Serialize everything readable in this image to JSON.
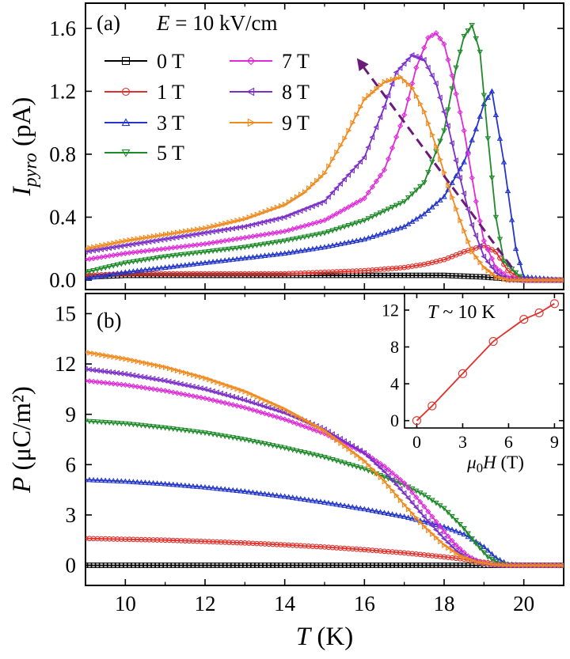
{
  "chart_data": [
    {
      "panel_label": "(a)",
      "type": "line",
      "annotation": "E = 10 kV/cm",
      "annotation_parts": {
        "symbol": "E",
        "rest": " = 10 kV/cm"
      },
      "xlim": [
        9,
        21
      ],
      "ylim": [
        -0.06,
        1.76
      ],
      "x_ticks": [
        10,
        12,
        14,
        16,
        18,
        20
      ],
      "y_ticks": [
        0.0,
        0.4,
        0.8,
        1.2,
        1.6
      ],
      "y_tick_labels": [
        "0.0",
        "0.4",
        "0.8",
        "1.2",
        "1.6"
      ],
      "ylabel": {
        "symbol": "I",
        "subscript": "pyro",
        "unit": " (pA)"
      },
      "arrow": {
        "from": [
          19.7,
          0.08
        ],
        "to": [
          15.9,
          1.38
        ],
        "color": "#6a1b7a"
      },
      "series": [
        {
          "name": "0 T",
          "color": "#000000",
          "marker": "square",
          "x": [
            9,
            10,
            11,
            12,
            13,
            14,
            15,
            16,
            17,
            18,
            19,
            20,
            21
          ],
          "y": [
            0.02,
            0.03,
            0.03,
            0.03,
            0.03,
            0.03,
            0.03,
            0.03,
            0.03,
            0.03,
            0.02,
            0.0,
            0.0
          ]
        },
        {
          "name": "1 T",
          "color": "#e0302a",
          "marker": "circle",
          "x": [
            9,
            10,
            11,
            12,
            13,
            14,
            15,
            16,
            17,
            17.5,
            18,
            18.5,
            19,
            19.3,
            19.6,
            20,
            21
          ],
          "y": [
            0.03,
            0.04,
            0.04,
            0.04,
            0.04,
            0.04,
            0.05,
            0.06,
            0.08,
            0.1,
            0.13,
            0.18,
            0.22,
            0.18,
            0.06,
            0.0,
            0.0
          ]
        },
        {
          "name": "3 T",
          "color": "#2336c9",
          "marker": "triangle-up",
          "x": [
            9,
            10,
            11,
            12,
            13,
            14,
            15,
            16,
            17,
            17.5,
            18,
            18.5,
            18.8,
            19,
            19.2,
            19.5,
            19.8,
            20,
            21
          ],
          "y": [
            0.01,
            0.05,
            0.08,
            0.11,
            0.14,
            0.17,
            0.21,
            0.26,
            0.34,
            0.42,
            0.53,
            0.75,
            0.96,
            1.12,
            1.2,
            0.75,
            0.2,
            0.02,
            0.0
          ]
        },
        {
          "name": "5 T",
          "color": "#1f8a2a",
          "marker": "triangle-down",
          "x": [
            9,
            10,
            11,
            12,
            13,
            14,
            15,
            16,
            17,
            17.5,
            18,
            18.3,
            18.5,
            18.7,
            18.9,
            19.1,
            19.3,
            19.5,
            20,
            21
          ],
          "y": [
            0.05,
            0.11,
            0.15,
            0.18,
            0.21,
            0.25,
            0.3,
            0.38,
            0.5,
            0.62,
            0.95,
            1.35,
            1.55,
            1.62,
            1.45,
            0.9,
            0.4,
            0.12,
            0.0,
            0.0
          ]
        },
        {
          "name": "7 T",
          "color": "#e02ad9",
          "marker": "diamond",
          "x": [
            9,
            10,
            11,
            12,
            13,
            14,
            15,
            16,
            16.5,
            17,
            17.3,
            17.6,
            17.8,
            18,
            18.2,
            18.5,
            18.8,
            19,
            19.3,
            19.6,
            20,
            21
          ],
          "y": [
            0.13,
            0.17,
            0.2,
            0.23,
            0.27,
            0.31,
            0.38,
            0.52,
            0.7,
            1.05,
            1.35,
            1.54,
            1.57,
            1.5,
            1.3,
            0.95,
            0.5,
            0.25,
            0.08,
            0.02,
            0.0,
            0.0
          ]
        },
        {
          "name": "8 T",
          "color": "#7a2fc9",
          "marker": "triangle-left",
          "x": [
            9,
            10,
            11,
            12,
            13,
            14,
            15,
            16,
            16.5,
            16.8,
            17.2,
            17.5,
            17.8,
            18.1,
            18.4,
            18.7,
            19,
            19.3,
            19.6,
            20,
            21
          ],
          "y": [
            0.18,
            0.22,
            0.26,
            0.3,
            0.34,
            0.4,
            0.5,
            0.78,
            1.1,
            1.32,
            1.43,
            1.4,
            1.25,
            0.98,
            0.65,
            0.35,
            0.15,
            0.05,
            0.0,
            0.0,
            0.0
          ]
        },
        {
          "name": "9 T",
          "color": "#f08a1e",
          "marker": "triangle-right",
          "x": [
            9,
            10,
            11,
            12,
            13,
            14,
            14.5,
            15,
            15.5,
            16,
            16.5,
            16.9,
            17.2,
            17.5,
            17.8,
            18.1,
            18.4,
            18.7,
            19,
            19.3,
            19.6,
            20,
            21
          ],
          "y": [
            0.2,
            0.25,
            0.29,
            0.33,
            0.39,
            0.48,
            0.56,
            0.68,
            0.9,
            1.15,
            1.26,
            1.29,
            1.22,
            1.07,
            0.85,
            0.6,
            0.38,
            0.18,
            0.08,
            0.02,
            0.0,
            0.0,
            0.0
          ]
        }
      ]
    },
    {
      "panel_label": "(b)",
      "type": "line",
      "xlim": [
        9,
        21
      ],
      "ylim": [
        -1.2,
        16.2
      ],
      "x_ticks": [
        10,
        12,
        14,
        16,
        18,
        20
      ],
      "y_ticks": [
        0,
        3,
        6,
        9,
        12,
        15
      ],
      "xlabel": {
        "symbol": "T",
        "unit": " (K)"
      },
      "ylabel": {
        "symbol": "P",
        "unit": " (μC/m²)"
      },
      "series": [
        {
          "name": "0 T",
          "color": "#000000",
          "marker": "square",
          "x": [
            9,
            10,
            11,
            12,
            13,
            14,
            15,
            16,
            17,
            18,
            19,
            20,
            21
          ],
          "y": [
            0,
            0,
            0,
            0,
            0,
            0,
            0,
            0,
            0,
            0,
            0,
            0,
            0
          ]
        },
        {
          "name": "1 T",
          "color": "#e0302a",
          "marker": "circle",
          "x": [
            9,
            10,
            11,
            12,
            13,
            14,
            15,
            16,
            17,
            18,
            18.5,
            19,
            19.5,
            20,
            21
          ],
          "y": [
            1.6,
            1.55,
            1.5,
            1.42,
            1.33,
            1.22,
            1.09,
            0.93,
            0.74,
            0.5,
            0.36,
            0.18,
            0.04,
            0.0,
            0.0
          ]
        },
        {
          "name": "3 T",
          "color": "#2336c9",
          "marker": "triangle-up",
          "x": [
            9,
            10,
            11,
            12,
            13,
            14,
            15,
            16,
            17,
            18,
            18.5,
            19,
            19.3,
            19.6,
            20,
            21
          ],
          "y": [
            5.1,
            5.0,
            4.85,
            4.65,
            4.4,
            4.1,
            3.75,
            3.35,
            2.9,
            2.3,
            1.85,
            1.1,
            0.45,
            0.06,
            0.0,
            0.0
          ]
        },
        {
          "name": "5 T",
          "color": "#1f8a2a",
          "marker": "triangle-down",
          "x": [
            9,
            10,
            11,
            12,
            13,
            14,
            15,
            16,
            17,
            17.5,
            18,
            18.5,
            18.8,
            19.1,
            19.4,
            19.7,
            20,
            21
          ],
          "y": [
            8.6,
            8.45,
            8.2,
            7.9,
            7.5,
            7.0,
            6.45,
            5.75,
            4.8,
            4.2,
            3.4,
            2.2,
            1.3,
            0.5,
            0.1,
            0.0,
            0.0,
            0.0
          ]
        },
        {
          "name": "7 T",
          "color": "#e02ad9",
          "marker": "diamond",
          "x": [
            9,
            10,
            11,
            12,
            13,
            14,
            15,
            16,
            16.5,
            17,
            17.5,
            18,
            18.3,
            18.6,
            18.9,
            19.2,
            19.6,
            20,
            21
          ],
          "y": [
            11.0,
            10.75,
            10.4,
            9.95,
            9.4,
            8.7,
            7.85,
            6.7,
            5.9,
            4.9,
            3.5,
            2.0,
            1.2,
            0.55,
            0.18,
            0.04,
            0.0,
            0.0,
            0.0
          ]
        },
        {
          "name": "8 T",
          "color": "#7a2fc9",
          "marker": "triangle-left",
          "x": [
            9,
            10,
            11,
            12,
            13,
            14,
            15,
            16,
            16.5,
            17,
            17.5,
            18,
            18.3,
            18.6,
            18.9,
            19.2,
            19.6,
            20,
            21
          ],
          "y": [
            11.7,
            11.4,
            11.0,
            10.5,
            9.85,
            9.1,
            8.1,
            6.7,
            5.6,
            4.3,
            2.9,
            1.6,
            0.9,
            0.4,
            0.12,
            0.02,
            0.0,
            0.0,
            0.0
          ]
        },
        {
          "name": "9 T",
          "color": "#f08a1e",
          "marker": "triangle-right",
          "x": [
            9,
            10,
            11,
            12,
            13,
            14,
            15,
            16,
            16.5,
            17,
            17.5,
            18,
            18.4,
            18.8,
            19.2,
            19.6,
            20,
            21
          ],
          "y": [
            12.7,
            12.3,
            11.8,
            11.15,
            10.35,
            9.3,
            8.0,
            6.2,
            5.0,
            3.6,
            2.3,
            1.2,
            0.55,
            0.2,
            0.05,
            0.0,
            0.0,
            0.0
          ]
        }
      ]
    },
    {
      "panel_label": "inset",
      "type": "line",
      "annotation_parts": {
        "symbol": "T",
        "rest": " ~ 10 K"
      },
      "xlim": [
        -0.8,
        9.6
      ],
      "ylim": [
        -0.8,
        13.8
      ],
      "x_ticks": [
        0,
        3,
        6,
        9
      ],
      "y_ticks": [
        0,
        4,
        8,
        12
      ],
      "xlabel": {
        "symbol": "μ",
        "subscript": "0",
        "symbol2": "H",
        "unit": " (T)"
      },
      "series": [
        {
          "name": "",
          "color": "#e0302a",
          "marker": "circle",
          "x": [
            0,
            1,
            3,
            5,
            7,
            8,
            9
          ],
          "y": [
            0.0,
            1.6,
            5.1,
            8.6,
            11.0,
            11.7,
            12.7
          ]
        }
      ]
    }
  ]
}
